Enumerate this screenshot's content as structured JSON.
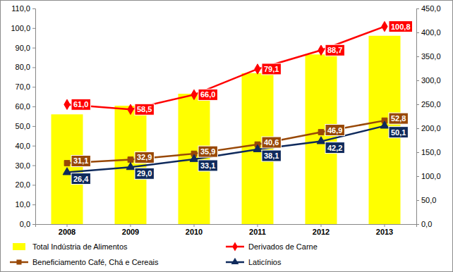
{
  "chart_data": {
    "type": "combo",
    "categories": [
      "2008",
      "2009",
      "2010",
      "2011",
      "2012",
      "2013"
    ],
    "ylim": [
      0,
      110
    ],
    "yticks": [
      {
        "value": 0,
        "label": "0,0"
      },
      {
        "value": 10,
        "label": "10,0"
      },
      {
        "value": 20,
        "label": "20,0"
      },
      {
        "value": 30,
        "label": "30,0"
      },
      {
        "value": 40,
        "label": "40,0"
      },
      {
        "value": 50,
        "label": "50,0"
      },
      {
        "value": 60,
        "label": "60,0"
      },
      {
        "value": 70,
        "label": "70,0"
      },
      {
        "value": 80,
        "label": "80,0"
      },
      {
        "value": 90,
        "label": "90,0"
      },
      {
        "value": 100,
        "label": "100,0"
      },
      {
        "value": 110,
        "label": "110,0"
      }
    ],
    "y2lim": [
      0,
      450
    ],
    "y2ticks": [
      {
        "value": 0,
        "label": "0,0"
      },
      {
        "value": 50,
        "label": "50,0"
      },
      {
        "value": 100,
        "label": "100,0"
      },
      {
        "value": 150,
        "label": "150,0"
      },
      {
        "value": 200,
        "label": "200,0"
      },
      {
        "value": 250,
        "label": "250,0"
      },
      {
        "value": 300,
        "label": "300,0"
      },
      {
        "value": 350,
        "label": "350,0"
      },
      {
        "value": 400,
        "label": "400,0"
      },
      {
        "value": 450,
        "label": "450,0"
      }
    ],
    "grid": false,
    "legend": "bottom",
    "data_labels": true,
    "series": [
      {
        "name": "Total Indústria de Alimentos",
        "type": "bar",
        "axis": "y2",
        "color": "#ffff00",
        "data_labels": false,
        "values": [
          229,
          247,
          272,
          315,
          354,
          393
        ]
      },
      {
        "name": "Derivados de Carne",
        "type": "line",
        "color": "#ff0000",
        "marker": "diamond",
        "values": [
          61.0,
          58.5,
          66.0,
          79.1,
          88.7,
          100.8
        ],
        "value_labels": [
          "61,0",
          "58,5",
          "66,0",
          "79,1",
          "88,7",
          "100,8"
        ]
      },
      {
        "name": "Beneficiamento Café, Chá e Cereais",
        "type": "line",
        "color": "#984807",
        "marker": "square",
        "values": [
          31.1,
          32.9,
          35.9,
          40.6,
          46.9,
          52.8
        ],
        "value_labels": [
          "31,1",
          "32,9",
          "35,9",
          "40,6",
          "46,9",
          "52,8"
        ]
      },
      {
        "name": "Laticínios",
        "type": "line",
        "color": "#0f2a5c",
        "marker": "triangle",
        "values": [
          26.4,
          29.0,
          33.1,
          38.1,
          42.2,
          50.1
        ],
        "value_labels": [
          "26,4",
          "29,0",
          "33,1",
          "38,1",
          "42,2",
          "50,1"
        ]
      }
    ]
  }
}
